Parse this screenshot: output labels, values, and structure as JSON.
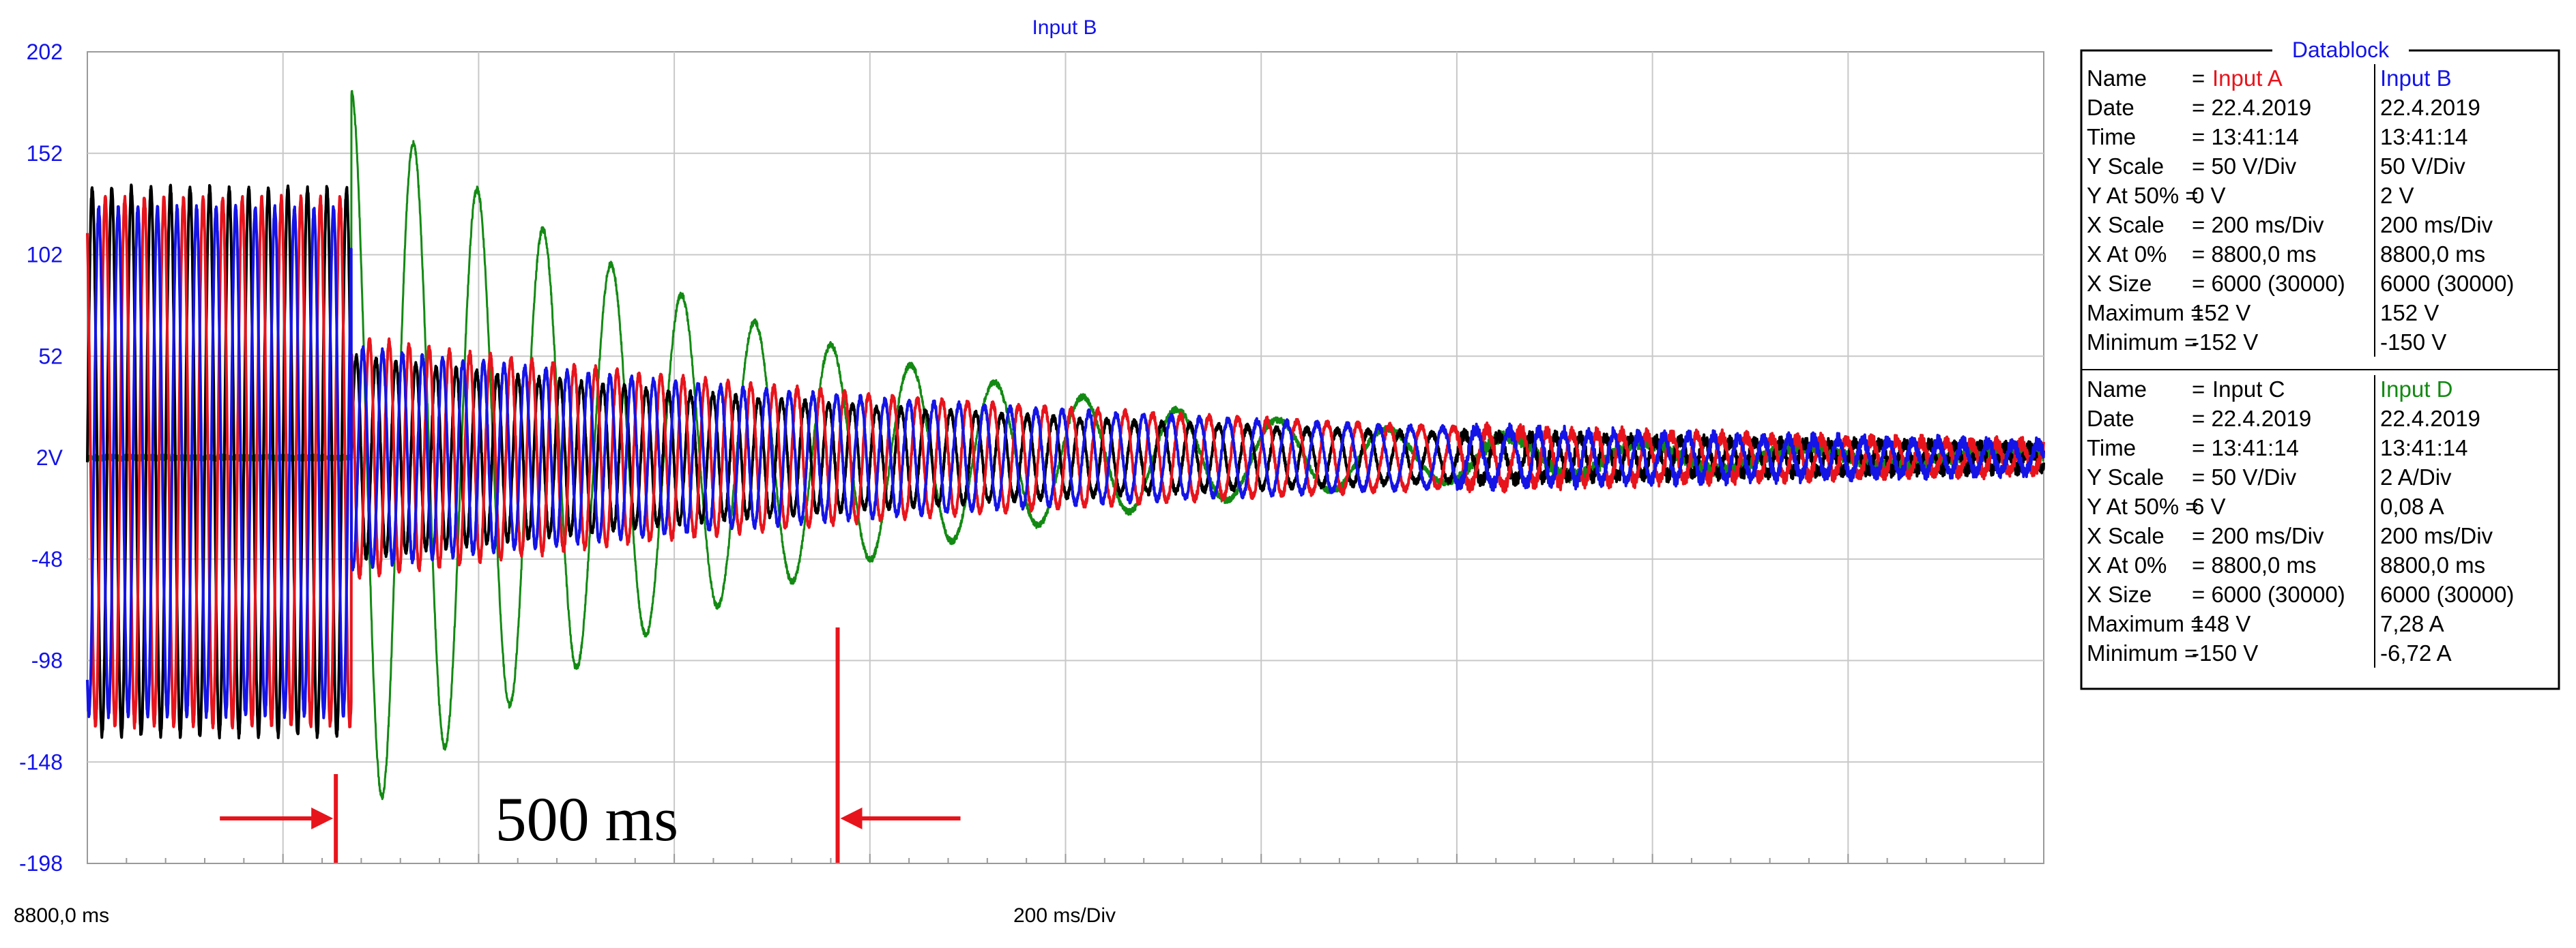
{
  "chart_data": {
    "type": "line",
    "title": "Input B",
    "ylim": [
      -198,
      202
    ],
    "xlim_divisions": [
      0,
      10
    ],
    "y_ticks": [
      {
        "value": 202,
        "label": "202"
      },
      {
        "value": 152,
        "label": "152"
      },
      {
        "value": 102,
        "label": "102"
      },
      {
        "value": 52,
        "label": "52"
      },
      {
        "value": 2,
        "label": "2V"
      },
      {
        "value": -48,
        "label": "-48"
      },
      {
        "value": -98,
        "label": "-98"
      },
      {
        "value": -148,
        "label": "-148"
      },
      {
        "value": -198,
        "label": "-198"
      }
    ],
    "x_start_label": "8800,0 ms",
    "x_scale_label": "200 ms/Div",
    "grid": true,
    "annotation": {
      "text": "500 ms",
      "marker_1_div": 1.34,
      "marker_2_div": 3.87,
      "color": "#e8141c"
    },
    "series": [
      {
        "name": "Input A",
        "color": "#e8141c",
        "phase_deg": 120,
        "pre_amplitude": 130,
        "post_peak": 60,
        "decay_per_s": 1.25,
        "freq_hz": 50
      },
      {
        "name": "Input B",
        "color": "#1414e6",
        "phase_deg": 240,
        "pre_amplitude": 125,
        "post_peak": 55,
        "decay_per_s": 1.2,
        "freq_hz": 50
      },
      {
        "name": "Input C",
        "color": "#000000",
        "phase_deg": 0,
        "pre_amplitude": 135,
        "post_peak": 50,
        "decay_per_s": 1.3,
        "freq_hz": 50
      },
      {
        "name": "Input D",
        "color": "#138a13",
        "phase_deg": 0,
        "pre_amplitude": 0,
        "post_peak": 180,
        "decay_per_s": 2.4,
        "freq_hz": 25
      }
    ],
    "event_div": 1.35
  },
  "datablock": {
    "title": "Datablock",
    "section1": {
      "name_left": "Input A",
      "name_right": "Input B",
      "name_left_color": "#e8141c",
      "name_right_color": "#1414e6",
      "rows": [
        {
          "label": "Date",
          "left": "= 22.4.2019",
          "right": "22.4.2019"
        },
        {
          "label": "Time",
          "left": "= 13:41:14",
          "right": "13:41:14"
        },
        {
          "label": "Y Scale",
          "left": "=    50   V/Div",
          "right": "50     V/Div"
        },
        {
          "label": "Y At 50% =",
          "left": "     0    V",
          "right": "2      V"
        },
        {
          "label": "X Scale",
          "left": "=   200   ms/Div",
          "right": "200     ms/Div"
        },
        {
          "label": "X At 0%",
          "left": "= 8800,0 ms",
          "right": "8800,0   ms"
        },
        {
          "label": "X Size",
          "left": "= 6000 (30000)",
          "right": "6000 (30000)"
        },
        {
          "label": "Maximum =",
          "left": "   152   V",
          "right": "152     V"
        },
        {
          "label": "Minimum =",
          "left": "  -152   V",
          "right": "-150     V"
        }
      ]
    },
    "section2": {
      "name_left": "Input C",
      "name_right": "Input D",
      "name_left_color": "#000000",
      "name_right_color": "#138a13",
      "rows": [
        {
          "label": "Date",
          "left": "= 22.4.2019",
          "right": "22.4.2019"
        },
        {
          "label": "Time",
          "left": "= 13:41:14",
          "right": "13:41:14"
        },
        {
          "label": "Y Scale",
          "left": "=    50   V/Div",
          "right": "2      A/Div"
        },
        {
          "label": "Y At 50% =",
          "left": "     6    V",
          "right": "0,08 A"
        },
        {
          "label": "X Scale",
          "left": "=   200   ms/Div",
          "right": "200     ms/Div"
        },
        {
          "label": "X At 0%",
          "left": "= 8800,0 ms",
          "right": "8800,0   ms"
        },
        {
          "label": "X Size",
          "left": "= 6000 (30000)",
          "right": "6000 (30000)"
        },
        {
          "label": "Maximum =",
          "left": "   148   V",
          "right": "7,28 A"
        },
        {
          "label": "Minimum =",
          "left": "  -150   V",
          "right": "-6,72 A"
        }
      ]
    },
    "name_label": "Name"
  }
}
